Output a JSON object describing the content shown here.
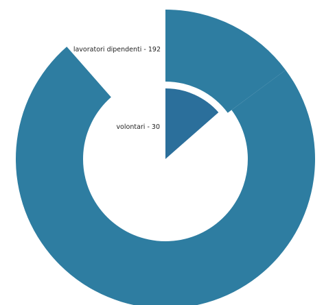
{
  "chart_data": {
    "type": "pie",
    "variant": "polar-area-donut",
    "title": "",
    "start": "12 o'clock",
    "direction": "clockwise",
    "slices": [
      {
        "label": "lavoratori dipendenti - 192",
        "value": 192,
        "color": "#2e7da1"
      },
      {
        "label": "volontari - 30",
        "value": 30,
        "color": "#2b6f9b"
      }
    ]
  }
}
